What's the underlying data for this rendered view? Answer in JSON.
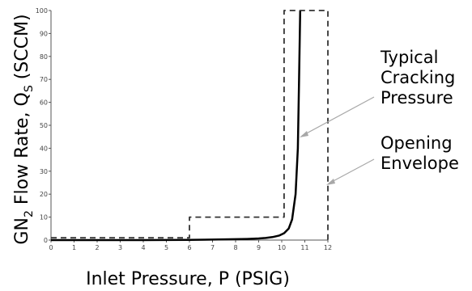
{
  "chart_data": {
    "type": "line",
    "xlabel": "Inlet Pressure, P (PSIG)",
    "ylabel": {
      "prefix": "GN",
      "sub1": "2",
      "mid": " Flow Rate, Q",
      "sub2": "S",
      "suffix": " (SCCM)"
    },
    "xlim": [
      0,
      12
    ],
    "ylim": [
      0,
      100
    ],
    "x_ticks": [
      "0",
      "1",
      "2",
      "3",
      "4",
      "5",
      "6",
      "7",
      "8",
      "9",
      "10",
      "11",
      "12"
    ],
    "y_ticks": [
      "0",
      "10",
      "20",
      "30",
      "40",
      "50",
      "60",
      "70",
      "80",
      "90",
      "100"
    ],
    "grid": false,
    "series": [
      {
        "style": "solid",
        "x": [
          0,
          2,
          4,
          6,
          7,
          8,
          8.5,
          9,
          9.3,
          9.6,
          9.9,
          10.1,
          10.3,
          10.45,
          10.6,
          10.7,
          10.75,
          10.8
        ],
        "y": [
          0,
          0,
          0,
          0.1,
          0.2,
          0.4,
          0.5,
          0.7,
          0.9,
          1.3,
          2,
          3,
          5,
          9,
          20,
          40,
          70,
          100
        ]
      },
      {
        "style": "dashed",
        "x": [
          0,
          6,
          6,
          10.1,
          10.1,
          12,
          12
        ],
        "y": [
          1,
          1,
          10,
          10,
          100,
          100,
          0
        ]
      }
    ],
    "annotations": [
      {
        "lines": [
          "Typical",
          "Cracking",
          "Pressure"
        ],
        "target_series": 0
      },
      {
        "lines": [
          "Opening",
          "Envelope"
        ],
        "target_series": 1
      }
    ]
  }
}
